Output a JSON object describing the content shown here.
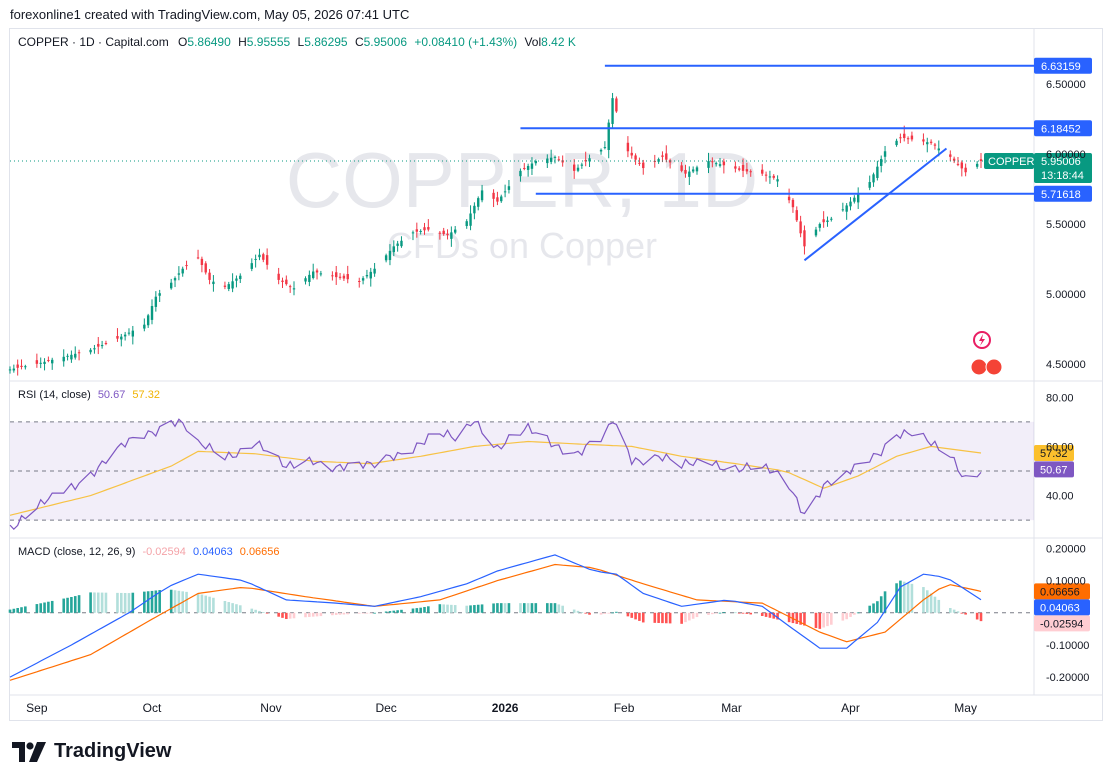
{
  "attribution": "forexonline1 created with TradingView.com, May 05, 2026 07:41 UTC",
  "legend": {
    "symbol": "COPPER · 1D · Capital.com",
    "o_label": "O",
    "o": "5.86490",
    "h_label": "H",
    "h": "5.95555",
    "l_label": "L",
    "l": "5.86295",
    "c_label": "C",
    "c": "5.95006",
    "change": "+0.08410 (+1.43%)",
    "vol_label": "Vol",
    "vol": "8.42 K"
  },
  "watermark": {
    "title": "COPPER, 1D",
    "subtitle": "CFDs on Copper"
  },
  "footer": {
    "brand": "TradingView"
  },
  "chart_data": [
    {
      "type": "candlestick",
      "title": "COPPER · 1D · Capital.com",
      "price_axis_ticks": [
        "6.50000",
        "6.00000",
        "5.50000",
        "5.00000",
        "4.50000"
      ],
      "ylim": [
        4.42,
        6.73
      ],
      "x_axis_labels": [
        "Sep",
        "Oct",
        "Nov",
        "Dec",
        "2026",
        "Feb",
        "Mar",
        "Apr",
        "May"
      ],
      "date_range": [
        "2025-08-25",
        "2026-05-05"
      ],
      "close_path": [
        [
          "2025-08-25",
          4.46
        ],
        [
          "2025-09-01",
          4.5
        ],
        [
          "2025-09-08",
          4.55
        ],
        [
          "2025-09-15",
          4.6
        ],
        [
          "2025-09-22",
          4.68
        ],
        [
          "2025-09-29",
          4.78
        ],
        [
          "2025-10-02",
          4.98
        ],
        [
          "2025-10-06",
          5.08
        ],
        [
          "2025-10-09",
          5.18
        ],
        [
          "2025-10-13",
          5.26
        ],
        [
          "2025-10-16",
          5.1
        ],
        [
          "2025-10-20",
          5.05
        ],
        [
          "2025-10-24",
          5.13
        ],
        [
          "2025-10-29",
          5.28
        ],
        [
          "2025-11-03",
          5.1
        ],
        [
          "2025-11-07",
          5.04
        ],
        [
          "2025-11-12",
          5.16
        ],
        [
          "2025-11-18",
          5.12
        ],
        [
          "2025-11-24",
          5.09
        ],
        [
          "2025-11-28",
          5.18
        ],
        [
          "2025-12-03",
          5.34
        ],
        [
          "2025-12-08",
          5.44
        ],
        [
          "2025-12-12",
          5.46
        ],
        [
          "2025-12-17",
          5.42
        ],
        [
          "2025-12-22",
          5.52
        ],
        [
          "2025-12-26",
          5.74
        ],
        [
          "2025-12-30",
          5.66
        ],
        [
          "2026-01-05",
          5.88
        ],
        [
          "2026-01-09",
          5.95
        ],
        [
          "2026-01-14",
          5.98
        ],
        [
          "2026-01-19",
          5.88
        ],
        [
          "2026-01-23",
          5.97
        ],
        [
          "2026-01-27",
          6.05
        ],
        [
          "2026-01-29",
          6.4
        ],
        [
          "2026-02-02",
          6.02
        ],
        [
          "2026-02-06",
          5.9
        ],
        [
          "2026-02-11",
          5.98
        ],
        [
          "2026-02-17",
          5.86
        ],
        [
          "2026-02-23",
          5.95
        ],
        [
          "2026-02-27",
          5.92
        ],
        [
          "2026-03-04",
          5.88
        ],
        [
          "2026-03-09",
          5.86
        ],
        [
          "2026-03-13",
          5.82
        ],
        [
          "2026-03-17",
          5.62
        ],
        [
          "2026-03-20",
          5.34
        ],
        [
          "2026-03-24",
          5.5
        ],
        [
          "2026-03-28",
          5.55
        ],
        [
          "2026-04-01",
          5.66
        ],
        [
          "2026-04-06",
          5.8
        ],
        [
          "2026-04-10",
          6.02
        ],
        [
          "2026-04-14",
          6.12
        ],
        [
          "2026-04-18",
          6.1
        ],
        [
          "2026-04-22",
          6.08
        ],
        [
          "2026-04-27",
          5.98
        ],
        [
          "2026-05-01",
          5.87
        ],
        [
          "2026-05-05",
          5.95
        ]
      ],
      "annotations": {
        "horizontal_levels": [
          "6.63159",
          "6.18452",
          "5.71618"
        ],
        "trendline": [
          [
            "2026-03-20",
            5.24
          ],
          [
            "2026-04-26",
            6.04
          ]
        ],
        "last_price_label": {
          "symbol": "COPPER",
          "price": "5.95006",
          "countdown": "13:18:44"
        }
      },
      "colors": {
        "up": "#089981",
        "down": "#f23645",
        "level_lines": "#2962ff"
      }
    },
    {
      "type": "line",
      "title": "RSI (14, close)",
      "series": [
        {
          "name": "RSI",
          "value_label": "50.67",
          "color": "#7e57c2"
        },
        {
          "name": "RSI-based MA",
          "value_label": "57.32",
          "color": "#f7c244"
        }
      ],
      "axis_ticks": [
        "80.00",
        "60.00",
        "40.00"
      ],
      "band": [
        30,
        70
      ],
      "ylim": [
        26,
        85
      ],
      "rsi_path": [
        [
          "2025-08-25",
          28
        ],
        [
          "2025-09-05",
          38
        ],
        [
          "2025-09-15",
          50
        ],
        [
          "2025-09-22",
          58
        ],
        [
          "2025-10-01",
          66
        ],
        [
          "2025-10-06",
          72
        ],
        [
          "2025-10-09",
          70
        ],
        [
          "2025-10-13",
          60
        ],
        [
          "2025-10-20",
          55
        ],
        [
          "2025-10-28",
          63
        ],
        [
          "2025-11-05",
          50
        ],
        [
          "2025-11-12",
          55
        ],
        [
          "2025-11-20",
          52
        ],
        [
          "2025-11-27",
          51
        ],
        [
          "2025-12-03",
          57
        ],
        [
          "2025-12-10",
          62
        ],
        [
          "2025-12-15",
          64
        ],
        [
          "2025-12-20",
          62
        ],
        [
          "2025-12-24",
          72
        ],
        [
          "2025-12-30",
          60
        ],
        [
          "2026-01-07",
          66
        ],
        [
          "2026-01-13",
          62
        ],
        [
          "2026-01-20",
          58
        ],
        [
          "2026-01-27",
          63
        ],
        [
          "2026-01-29",
          70
        ],
        [
          "2026-02-03",
          55
        ],
        [
          "2026-02-10",
          57
        ],
        [
          "2026-02-16",
          51
        ],
        [
          "2026-02-24",
          54
        ],
        [
          "2026-03-02",
          52
        ],
        [
          "2026-03-09",
          50
        ],
        [
          "2026-03-15",
          47
        ],
        [
          "2026-03-20",
          34
        ],
        [
          "2026-03-25",
          44
        ],
        [
          "2026-03-30",
          46
        ],
        [
          "2026-04-03",
          52
        ],
        [
          "2026-04-08",
          58
        ],
        [
          "2026-04-13",
          66
        ],
        [
          "2026-04-18",
          64
        ],
        [
          "2026-04-22",
          60
        ],
        [
          "2026-04-27",
          57
        ],
        [
          "2026-05-01",
          48
        ],
        [
          "2026-05-05",
          50.67
        ]
      ],
      "ma_path": [
        [
          "2025-08-25",
          32
        ],
        [
          "2025-09-15",
          40
        ],
        [
          "2025-10-06",
          52
        ],
        [
          "2025-10-13",
          58
        ],
        [
          "2025-10-28",
          57
        ],
        [
          "2025-11-12",
          54
        ],
        [
          "2025-11-27",
          53
        ],
        [
          "2025-12-10",
          56
        ],
        [
          "2025-12-24",
          60
        ],
        [
          "2026-01-07",
          62
        ],
        [
          "2026-01-20",
          61
        ],
        [
          "2026-02-03",
          60
        ],
        [
          "2026-02-16",
          56
        ],
        [
          "2026-03-02",
          53
        ],
        [
          "2026-03-15",
          50
        ],
        [
          "2026-03-25",
          43
        ],
        [
          "2026-04-03",
          48
        ],
        [
          "2026-04-13",
          56
        ],
        [
          "2026-04-22",
          60
        ],
        [
          "2026-05-05",
          57.32
        ]
      ]
    },
    {
      "type": "bar",
      "title": "MACD (close, 12, 26, 9)",
      "series": [
        {
          "name": "Histogram",
          "value_label": "-0.02594",
          "colors": {
            "pos_strong": "#26a69a",
            "pos_weak": "#b2dfdb",
            "neg_strong": "#ff5252",
            "neg_weak": "#ffcdd2"
          }
        },
        {
          "name": "MACD",
          "value_label": "0.04063",
          "color": "#2962ff"
        },
        {
          "name": "Signal",
          "value_label": "0.06656",
          "color": "#ff6d00"
        }
      ],
      "axis_ticks": [
        "0.20000",
        "0.10000",
        "-0.10000",
        "-0.20000"
      ],
      "ylim": [
        -0.24,
        0.22
      ],
      "macd_path": [
        [
          "2025-08-25",
          -0.2
        ],
        [
          "2025-09-10",
          -0.1
        ],
        [
          "2025-09-25",
          0.0
        ],
        [
          "2025-10-05",
          0.08
        ],
        [
          "2025-10-13",
          0.12
        ],
        [
          "2025-10-25",
          0.1
        ],
        [
          "2025-11-05",
          0.04
        ],
        [
          "2025-11-18",
          0.03
        ],
        [
          "2025-11-28",
          0.02
        ],
        [
          "2025-12-10",
          0.05
        ],
        [
          "2025-12-22",
          0.09
        ],
        [
          "2025-12-30",
          0.13
        ],
        [
          "2026-01-08",
          0.16
        ],
        [
          "2026-01-14",
          0.18
        ],
        [
          "2026-01-24",
          0.13
        ],
        [
          "2026-01-30",
          0.12
        ],
        [
          "2026-02-06",
          0.06
        ],
        [
          "2026-02-16",
          0.02
        ],
        [
          "2026-02-28",
          0.04
        ],
        [
          "2026-03-09",
          0.02
        ],
        [
          "2026-03-17",
          -0.05
        ],
        [
          "2026-03-24",
          -0.11
        ],
        [
          "2026-03-31",
          -0.11
        ],
        [
          "2026-04-08",
          -0.03
        ],
        [
          "2026-04-14",
          0.08
        ],
        [
          "2026-04-20",
          0.12
        ],
        [
          "2026-04-26",
          0.11
        ],
        [
          "2026-05-05",
          0.04063
        ]
      ],
      "signal_path": [
        [
          "2025-08-25",
          -0.21
        ],
        [
          "2025-09-15",
          -0.13
        ],
        [
          "2025-10-01",
          -0.02
        ],
        [
          "2025-10-13",
          0.06
        ],
        [
          "2025-10-25",
          0.08
        ],
        [
          "2025-11-10",
          0.05
        ],
        [
          "2025-11-28",
          0.02
        ],
        [
          "2025-12-15",
          0.04
        ],
        [
          "2025-12-30",
          0.1
        ],
        [
          "2026-01-14",
          0.15
        ],
        [
          "2026-01-24",
          0.14
        ],
        [
          "2026-02-06",
          0.09
        ],
        [
          "2026-02-20",
          0.04
        ],
        [
          "2026-03-09",
          0.03
        ],
        [
          "2026-03-24",
          -0.06
        ],
        [
          "2026-03-31",
          -0.09
        ],
        [
          "2026-04-10",
          -0.06
        ],
        [
          "2026-04-20",
          0.04
        ],
        [
          "2026-04-26",
          0.09
        ],
        [
          "2026-05-05",
          0.06656
        ]
      ]
    }
  ]
}
